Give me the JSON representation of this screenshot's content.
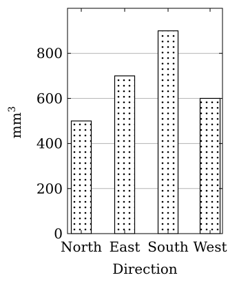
{
  "chart_data": {
    "type": "bar",
    "categories": [
      "North",
      "East",
      "South",
      "West"
    ],
    "values": [
      500,
      700,
      900,
      600
    ],
    "title": "",
    "xlabel": "Direction",
    "ylabel": "mm",
    "ylabel_superscript": "3",
    "ylim": [
      0,
      1000
    ],
    "yticks": [
      0,
      200,
      400,
      600,
      800
    ],
    "grid": "horizontal",
    "bar_fill_pattern": "dots",
    "bar_color": "#000000",
    "grid_color": "#b3b3b3"
  }
}
